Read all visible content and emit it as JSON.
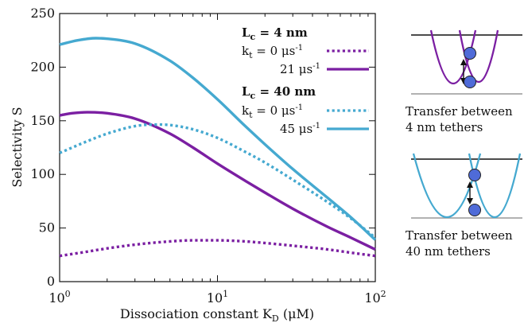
{
  "chart_data": {
    "type": "line",
    "xscale": "log",
    "xlim": [
      1,
      100
    ],
    "ylim": [
      0,
      250
    ],
    "xlabel": "Dissociation constant K",
    "xlabel_sub": "D",
    "xlabel_unit": " (μM)",
    "ylabel": "Selectivity S",
    "x_ticks": [
      {
        "value": 1,
        "base": "10",
        "exp": "0"
      },
      {
        "value": 10,
        "base": "10",
        "exp": "1"
      },
      {
        "value": 100,
        "base": "10",
        "exp": "2"
      }
    ],
    "y_ticks": [
      0,
      50,
      100,
      150,
      200,
      250
    ],
    "grid": false,
    "legend": {
      "placement": "top-right",
      "groups": [
        {
          "heading": "L",
          "heading_sub": "c",
          "heading_value": " = 4 nm",
          "rows": [
            {
              "series_index": 0,
              "k_prefix": "k",
              "k_sub": "t",
              "label": " = 0 μs",
              "sup": "-1"
            },
            {
              "series_index": 1,
              "label": "21 μs",
              "sup": "-1"
            }
          ]
        },
        {
          "heading": "L",
          "heading_sub": "c",
          "heading_value": " = 40 nm",
          "rows": [
            {
              "series_index": 2,
              "k_prefix": "k",
              "k_sub": "t",
              "label": " = 0 μs",
              "sup": "-1"
            },
            {
              "series_index": 3,
              "label": "45 μs",
              "sup": "-1"
            }
          ]
        }
      ]
    },
    "series": [
      {
        "color": "#7b1fa2",
        "style": "dotted",
        "points": [
          [
            1,
            24
          ],
          [
            1.5,
            28
          ],
          [
            2,
            31
          ],
          [
            3,
            34.5
          ],
          [
            5,
            37.5
          ],
          [
            7,
            38.5
          ],
          [
            10,
            38.5
          ],
          [
            15,
            37.5
          ],
          [
            20,
            36
          ],
          [
            30,
            33.5
          ],
          [
            50,
            30
          ],
          [
            70,
            27
          ],
          [
            100,
            24
          ]
        ]
      },
      {
        "color": "#7b1fa2",
        "style": "solid",
        "points": [
          [
            1,
            155
          ],
          [
            1.2,
            157
          ],
          [
            1.5,
            158
          ],
          [
            2,
            157
          ],
          [
            3,
            152
          ],
          [
            5,
            138
          ],
          [
            7,
            125
          ],
          [
            10,
            110
          ],
          [
            15,
            94
          ],
          [
            20,
            83
          ],
          [
            30,
            68
          ],
          [
            50,
            51
          ],
          [
            70,
            41
          ],
          [
            100,
            30
          ]
        ]
      },
      {
        "color": "#45a9d0",
        "style": "dotted",
        "points": [
          [
            1,
            120
          ],
          [
            1.5,
            131
          ],
          [
            2,
            138
          ],
          [
            3,
            145
          ],
          [
            4,
            146.5
          ],
          [
            5,
            146
          ],
          [
            7,
            142
          ],
          [
            10,
            134
          ],
          [
            15,
            121
          ],
          [
            20,
            111
          ],
          [
            30,
            95
          ],
          [
            50,
            74
          ],
          [
            70,
            59
          ],
          [
            100,
            41
          ]
        ]
      },
      {
        "color": "#45a9d0",
        "style": "solid",
        "points": [
          [
            1,
            221
          ],
          [
            1.3,
            225
          ],
          [
            1.7,
            227
          ],
          [
            2,
            226.5
          ],
          [
            3,
            222
          ],
          [
            5,
            206
          ],
          [
            7,
            190
          ],
          [
            10,
            170
          ],
          [
            15,
            145
          ],
          [
            20,
            128
          ],
          [
            30,
            105
          ],
          [
            50,
            78
          ],
          [
            70,
            60
          ],
          [
            100,
            39
          ]
        ]
      }
    ]
  },
  "insets": [
    {
      "caption_line1": "Transfer between",
      "caption_line2": "4 nm tethers",
      "curve_color": "#7b1fa2"
    },
    {
      "caption_line1": "Transfer between",
      "caption_line2": "40 nm tethers",
      "curve_color": "#45a9d0"
    }
  ],
  "colors": {
    "particle_fill": "#4f6bd8",
    "top_line": "#111111",
    "bottom_line": "#999999"
  }
}
